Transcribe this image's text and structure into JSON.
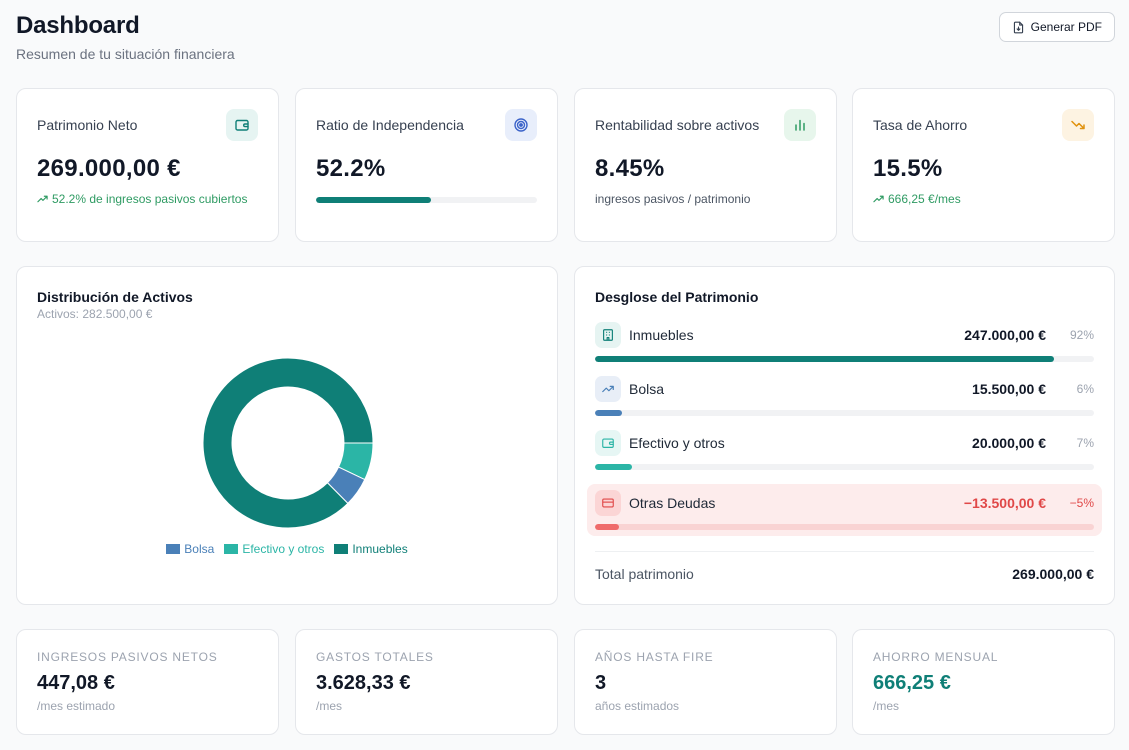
{
  "header": {
    "title": "Dashboard",
    "subtitle": "Resumen de tu situación financiera",
    "pdf_button": "Generar PDF"
  },
  "kpis": [
    {
      "label": "Patrimonio Neto",
      "value": "269.000,00 €",
      "sub": "52.2% de ingresos pasivos cubiertos",
      "icon": "wallet-icon"
    },
    {
      "label": "Ratio de Independencia",
      "value": "52.2%",
      "progress": 0.522,
      "icon": "target-icon"
    },
    {
      "label": "Rentabilidad sobre activos",
      "value": "8.45%",
      "sub": "ingresos pasivos / patrimonio",
      "icon": "bar-chart-icon"
    },
    {
      "label": "Tasa de Ahorro",
      "value": "15.5%",
      "sub": "666,25 €/mes",
      "icon": "trending-down-icon"
    }
  ],
  "distribution": {
    "title": "Distribución de Activos",
    "subtitle": "Activos: 282.500,00 €",
    "segments": [
      {
        "name": "Bolsa",
        "value": 15500,
        "color": "#4a80b8"
      },
      {
        "name": "Efectivo y otros",
        "value": 20000,
        "color": "#2bb5a6"
      },
      {
        "name": "Inmuebles",
        "value": 247000,
        "color": "#0f7f77"
      }
    ]
  },
  "breakdown": {
    "title": "Desglose del Patrimonio",
    "rows": [
      {
        "label": "Inmuebles",
        "amount": "247.000,00 €",
        "pct": "92%",
        "fraction": 0.92,
        "color": "#0f7f77"
      },
      {
        "label": "Bolsa",
        "amount": "15.500,00 €",
        "pct": "6%",
        "fraction": 0.055,
        "color": "#4a80b8"
      },
      {
        "label": "Efectivo y otros",
        "amount": "20.000,00 €",
        "pct": "7%",
        "fraction": 0.075,
        "color": "#2bb5a6"
      },
      {
        "label": "Otras Deudas",
        "amount": "−13.500,00 €",
        "pct": "−5%",
        "fraction": 0.048,
        "color": "#ef6b6b"
      }
    ],
    "total_label": "Total patrimonio",
    "total_value": "269.000,00 €"
  },
  "stats": [
    {
      "label": "Ingresos pasivos netos",
      "value": "447,08 €",
      "sub": "/mes estimado"
    },
    {
      "label": "Gastos totales",
      "value": "3.628,33 €",
      "sub": "/mes"
    },
    {
      "label": "Años hasta FIRE",
      "value": "3",
      "sub": "años estimados"
    },
    {
      "label": "Ahorro mensual",
      "value": "666,25 €",
      "sub": "/mes"
    }
  ]
}
